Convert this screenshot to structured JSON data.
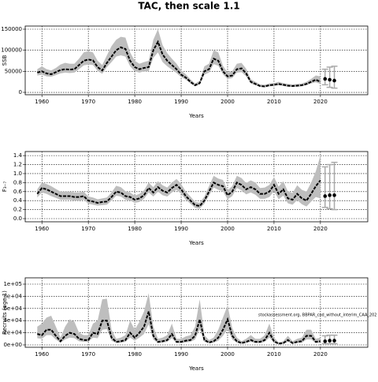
{
  "chart_data": [
    {
      "type": "line",
      "title": "TAC, then scale 1.1",
      "ylabel": "SSB",
      "xlabel": "Years",
      "grid": true,
      "xlim": [
        1956.4,
        2030.2
      ],
      "xticks": [
        1960,
        1970,
        1980,
        1990,
        2000,
        2010,
        2020
      ],
      "ylim": [
        -5600,
        157500
      ],
      "yticks": [
        0,
        50000,
        100000,
        150000
      ],
      "x": [
        1959,
        1960,
        1961,
        1962,
        1963,
        1964,
        1965,
        1966,
        1967,
        1968,
        1969,
        1970,
        1971,
        1972,
        1973,
        1974,
        1975,
        1976,
        1977,
        1978,
        1979,
        1980,
        1981,
        1982,
        1983,
        1984,
        1985,
        1986,
        1987,
        1988,
        1989,
        1990,
        1991,
        1992,
        1993,
        1994,
        1995,
        1996,
        1997,
        1998,
        1999,
        2000,
        2001,
        2002,
        2003,
        2004,
        2005,
        2006,
        2007,
        2008,
        2009,
        2010,
        2011,
        2012,
        2013,
        2014,
        2015,
        2016,
        2017,
        2018,
        2019,
        2020
      ],
      "series": [
        {
          "color": "#000000",
          "band_color": "#bebebe",
          "values": [
            47000,
            50000,
            45000,
            43000,
            48000,
            53000,
            55000,
            54000,
            55000,
            65000,
            75000,
            78000,
            76000,
            60000,
            52000,
            70000,
            85000,
            100000,
            107000,
            103000,
            75000,
            60000,
            55000,
            58000,
            60000,
            100000,
            120000,
            90000,
            75000,
            65000,
            55000,
            42000,
            35000,
            25000,
            17000,
            22000,
            50000,
            55000,
            80000,
            75000,
            50000,
            38000,
            40000,
            55000,
            57000,
            45000,
            25000,
            20000,
            15000,
            14000,
            17000,
            18000,
            20000,
            18000,
            16000,
            15000,
            16000,
            17000,
            20000,
            25000,
            30000,
            25000
          ],
          "lower": [
            40000,
            42000,
            38000,
            37000,
            41000,
            45000,
            47000,
            46000,
            47000,
            55000,
            64000,
            66000,
            65000,
            51000,
            44000,
            60000,
            72000,
            85000,
            88000,
            85000,
            62000,
            50000,
            47000,
            50000,
            50000,
            82000,
            95000,
            72000,
            62000,
            54000,
            46000,
            36000,
            30000,
            21000,
            14000,
            19000,
            42000,
            47000,
            67000,
            63000,
            43000,
            32000,
            34000,
            47000,
            48000,
            38000,
            21000,
            17000,
            13000,
            12000,
            14000,
            15000,
            17000,
            15000,
            13000,
            13000,
            13000,
            14000,
            17000,
            21000,
            24000,
            20000
          ],
          "upper": [
            55000,
            62000,
            55000,
            52000,
            58000,
            66000,
            70000,
            68000,
            68000,
            80000,
            95000,
            98000,
            95000,
            75000,
            65000,
            88000,
            110000,
            125000,
            132000,
            130000,
            95000,
            75000,
            68000,
            72000,
            75000,
            125000,
            150000,
            112000,
            93000,
            80000,
            68000,
            52000,
            43000,
            31000,
            21000,
            28000,
            62000,
            68000,
            100000,
            95000,
            63000,
            47000,
            50000,
            68000,
            70000,
            56000,
            31000,
            25000,
            19000,
            18000,
            21000,
            22000,
            25000,
            22000,
            20000,
            19000,
            20000,
            21000,
            25000,
            32000,
            40000,
            38000
          ]
        }
      ],
      "forecast": {
        "color": "#000000",
        "bar_color": "#aaaaaa",
        "x": [
          2021,
          2022,
          2023
        ],
        "values": [
          32000,
          30000,
          28000
        ],
        "lower": [
          18000,
          12000,
          10000
        ],
        "upper": [
          55000,
          60000,
          62000
        ]
      }
    },
    {
      "type": "line",
      "ylabel": "F₃₋₇",
      "xlabel": "Years",
      "grid": true,
      "xlim": [
        1956.4,
        2030.2
      ],
      "xticks": [
        1960,
        1970,
        1980,
        1990,
        2000,
        2010,
        2020
      ],
      "ylim": [
        -0.07,
        1.49
      ],
      "yticks": [
        {
          "value": 0,
          "label": "0.0"
        },
        0.2,
        0.4,
        0.6,
        0.8,
        {
          "value": 1,
          "label": "1.0"
        },
        1.2,
        1.4
      ],
      "x": [
        1959,
        1960,
        1961,
        1962,
        1963,
        1964,
        1965,
        1966,
        1967,
        1968,
        1969,
        1970,
        1971,
        1972,
        1973,
        1974,
        1975,
        1976,
        1977,
        1978,
        1979,
        1980,
        1981,
        1982,
        1983,
        1984,
        1985,
        1986,
        1987,
        1988,
        1989,
        1990,
        1991,
        1992,
        1993,
        1994,
        1995,
        1996,
        1997,
        1998,
        1999,
        2000,
        2001,
        2002,
        2003,
        2004,
        2005,
        2006,
        2007,
        2008,
        2009,
        2010,
        2011,
        2012,
        2013,
        2014,
        2015,
        2016,
        2017,
        2018,
        2019,
        2020
      ],
      "series": [
        {
          "color": "#000000",
          "band_color": "#bebebe",
          "values": [
            0.55,
            0.68,
            0.65,
            0.6,
            0.55,
            0.5,
            0.5,
            0.5,
            0.48,
            0.48,
            0.5,
            0.4,
            0.38,
            0.35,
            0.37,
            0.38,
            0.48,
            0.6,
            0.58,
            0.5,
            0.48,
            0.42,
            0.45,
            0.52,
            0.68,
            0.58,
            0.7,
            0.62,
            0.58,
            0.68,
            0.75,
            0.65,
            0.5,
            0.4,
            0.3,
            0.28,
            0.4,
            0.6,
            0.8,
            0.75,
            0.72,
            0.52,
            0.6,
            0.8,
            0.75,
            0.65,
            0.7,
            0.65,
            0.55,
            0.55,
            0.6,
            0.75,
            0.55,
            0.65,
            0.45,
            0.42,
            0.55,
            0.45,
            0.4,
            0.55,
            0.72,
            0.85
          ],
          "lower": [
            0.47,
            0.58,
            0.55,
            0.5,
            0.46,
            0.42,
            0.42,
            0.42,
            0.4,
            0.4,
            0.42,
            0.33,
            0.31,
            0.29,
            0.3,
            0.31,
            0.4,
            0.51,
            0.49,
            0.42,
            0.4,
            0.35,
            0.37,
            0.44,
            0.58,
            0.49,
            0.6,
            0.52,
            0.49,
            0.58,
            0.64,
            0.55,
            0.42,
            0.33,
            0.24,
            0.22,
            0.33,
            0.51,
            0.69,
            0.64,
            0.61,
            0.43,
            0.5,
            0.68,
            0.63,
            0.54,
            0.58,
            0.53,
            0.44,
            0.44,
            0.48,
            0.61,
            0.43,
            0.51,
            0.34,
            0.31,
            0.41,
            0.32,
            0.27,
            0.38,
            0.48,
            0.45
          ],
          "upper": [
            0.65,
            0.8,
            0.77,
            0.72,
            0.66,
            0.6,
            0.6,
            0.6,
            0.58,
            0.58,
            0.6,
            0.49,
            0.47,
            0.43,
            0.45,
            0.47,
            0.58,
            0.73,
            0.7,
            0.61,
            0.58,
            0.51,
            0.55,
            0.63,
            0.8,
            0.7,
            0.83,
            0.74,
            0.69,
            0.8,
            0.88,
            0.77,
            0.6,
            0.49,
            0.37,
            0.35,
            0.49,
            0.72,
            0.95,
            0.89,
            0.86,
            0.63,
            0.72,
            0.95,
            0.9,
            0.79,
            0.85,
            0.8,
            0.68,
            0.69,
            0.75,
            0.92,
            0.71,
            0.83,
            0.6,
            0.57,
            0.74,
            0.64,
            0.6,
            0.8,
            1.05,
            1.4
          ]
        }
      ],
      "forecast": {
        "color": "#000000",
        "bar_color": "#aaaaaa",
        "x": [
          2021,
          2022,
          2023
        ],
        "values": [
          0.5,
          0.52,
          0.52
        ],
        "lower": [
          0.25,
          0.22,
          0.2
        ],
        "upper": [
          1.15,
          1.2,
          1.25
        ]
      }
    },
    {
      "type": "line",
      "ylabel": "Recruits (age 1)",
      "xlabel": "Years",
      "grid": true,
      "annotation": "stockassessment.org, BBPAR_cod_without_interim_CAA_202",
      "xlim": [
        1956.4,
        2030.2
      ],
      "xticks": [
        1960,
        1970,
        1980,
        1990,
        2000,
        2010,
        2020
      ],
      "ylim": [
        -3900,
        110400
      ],
      "yticks": [
        {
          "value": 0,
          "label": "0e+00"
        },
        {
          "value": 20000,
          "label": "2e+04"
        },
        {
          "value": 40000,
          "label": "4e+04"
        },
        {
          "value": 60000,
          "label": "6e+04"
        },
        {
          "value": 80000,
          "label": "8e+04"
        },
        {
          "value": 100000,
          "label": "1e+05"
        }
      ],
      "x": [
        1959,
        1960,
        1961,
        1962,
        1963,
        1964,
        1965,
        1966,
        1967,
        1968,
        1969,
        1970,
        1971,
        1972,
        1973,
        1974,
        1975,
        1976,
        1977,
        1978,
        1979,
        1980,
        1981,
        1982,
        1983,
        1984,
        1985,
        1986,
        1987,
        1988,
        1989,
        1990,
        1991,
        1992,
        1993,
        1994,
        1995,
        1996,
        1997,
        1998,
        1999,
        2000,
        2001,
        2002,
        2003,
        2004,
        2005,
        2006,
        2007,
        2008,
        2009,
        2010,
        2011,
        2012,
        2013,
        2014,
        2015,
        2016,
        2017,
        2018,
        2019,
        2020
      ],
      "series": [
        {
          "color": "#000000",
          "band_color": "#bebebe",
          "values": [
            18000,
            16000,
            25000,
            25000,
            15000,
            6000,
            15000,
            20000,
            18000,
            10000,
            8000,
            8000,
            20000,
            18000,
            40000,
            40000,
            12000,
            5000,
            6000,
            8000,
            20000,
            12000,
            20000,
            30000,
            55000,
            15000,
            5000,
            6000,
            8000,
            18000,
            5000,
            5000,
            7000,
            8000,
            15000,
            42000,
            8000,
            4000,
            6000,
            12000,
            25000,
            42000,
            15000,
            6000,
            3000,
            5000,
            8000,
            5000,
            5000,
            8000,
            20000,
            6000,
            2000,
            3000,
            8000,
            3000,
            5000,
            6000,
            15000,
            15000,
            5000,
            6000
          ],
          "lower": [
            11000,
            10000,
            16000,
            16000,
            9000,
            3500,
            9000,
            12000,
            11000,
            6000,
            5000,
            5000,
            12000,
            11000,
            25000,
            26000,
            7000,
            3000,
            3500,
            5000,
            12000,
            7000,
            12000,
            18000,
            34000,
            9000,
            3000,
            3500,
            5000,
            11000,
            3000,
            3000,
            4000,
            5000,
            9000,
            26000,
            5000,
            2400,
            3500,
            7000,
            15000,
            26000,
            9000,
            3500,
            1800,
            3000,
            5000,
            3000,
            3000,
            5000,
            12000,
            3500,
            1200,
            1800,
            5000,
            1800,
            3000,
            3500,
            9000,
            9000,
            3000,
            3500
          ],
          "upper": [
            30000,
            35000,
            45000,
            48000,
            30000,
            12000,
            30000,
            42000,
            38000,
            20000,
            16000,
            16000,
            35000,
            40000,
            75000,
            76000,
            25000,
            10000,
            12000,
            16000,
            40000,
            25000,
            38000,
            55000,
            85000,
            30000,
            10000,
            12000,
            16000,
            35000,
            10000,
            10000,
            14000,
            16000,
            30000,
            75000,
            16000,
            8000,
            12000,
            25000,
            45000,
            65000,
            28000,
            12000,
            6000,
            10000,
            16000,
            10000,
            10000,
            16000,
            35000,
            12000,
            4000,
            6000,
            15000,
            6000,
            10000,
            12000,
            25000,
            25000,
            10000,
            12000
          ]
        }
      ],
      "forecast": {
        "color": "#000000",
        "bar_color": "#aaaaaa",
        "x": [
          2021,
          2022,
          2023
        ],
        "values": [
          6000,
          7000,
          7000
        ],
        "lower": [
          2000,
          2000,
          2000
        ],
        "upper": [
          15000,
          16000,
          16000
        ]
      }
    }
  ]
}
